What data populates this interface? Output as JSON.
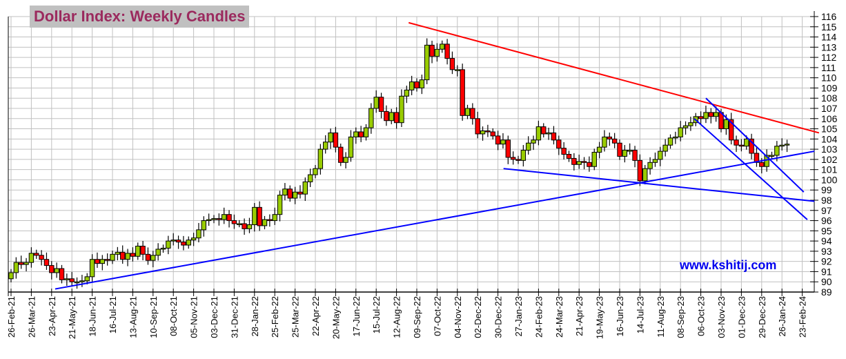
{
  "chart_data": {
    "type": "candlestick",
    "title": "Dollar Index: Weekly Candles",
    "watermark": "www.kshitij.com",
    "ylim": [
      89,
      116
    ],
    "y_ticks": [
      89,
      90,
      91,
      92,
      93,
      94,
      95,
      96,
      97,
      98,
      99,
      100,
      101,
      102,
      103,
      104,
      105,
      106,
      107,
      108,
      109,
      110,
      111,
      112,
      113,
      114,
      115,
      116
    ],
    "grid": true,
    "x_tick_labels": [
      "26-Feb-21",
      "26-Mar-21",
      "23-Apr-21",
      "21-May-21",
      "18-Jun-21",
      "16-Jul-21",
      "13-Aug-21",
      "10-Sep-21",
      "08-Oct-21",
      "05-Nov-21",
      "03-Dec-21",
      "31-Dec-21",
      "28-Jan-22",
      "25-Feb-22",
      "25-Mar-22",
      "22-Apr-22",
      "20-May-22",
      "17-Jun-22",
      "15-Jul-22",
      "12-Aug-22",
      "09-Sep-22",
      "07-Oct-22",
      "04-Nov-22",
      "02-Dec-22",
      "30-Dec-22",
      "27-Jan-23",
      "24-Feb-23",
      "24-Mar-23",
      "21-Apr-23",
      "19-May-23",
      "16-Jun-23",
      "14-Jul-23",
      "11-Aug-23",
      "08-Sep-23",
      "06-Oct-23",
      "03-Nov-23",
      "01-Dec-23",
      "29-Dec-23",
      "26-Jan-24",
      "23-Feb-24"
    ],
    "weeks_per_label": 4,
    "first_open": 90.3,
    "weekly_close": [
      90.9,
      91.9,
      91.7,
      91.9,
      92.8,
      92.6,
      92.2,
      91.6,
      90.9,
      91.3,
      90.2,
      90.3,
      90.0,
      90.0,
      90.1,
      90.5,
      92.2,
      91.8,
      92.2,
      92.1,
      92.7,
      92.9,
      92.2,
      92.8,
      92.5,
      93.5,
      92.7,
      92.1,
      92.6,
      93.2,
      93.3,
      94.0,
      94.1,
      93.9,
      93.6,
      94.1,
      94.3,
      95.1,
      96.0,
      96.1,
      96.2,
      96.1,
      96.6,
      96.0,
      95.7,
      95.7,
      95.2,
      95.6,
      97.3,
      95.5,
      96.1,
      96.0,
      96.6,
      98.5,
      99.1,
      98.2,
      98.8,
      98.6,
      99.8,
      100.5,
      101.1,
      103.0,
      103.7,
      104.6,
      103.2,
      101.7,
      102.2,
      104.2,
      104.7,
      104.2,
      105.1,
      107.0,
      108.1,
      106.7,
      105.8,
      106.6,
      105.6,
      108.2,
      108.8,
      109.6,
      109.0,
      109.8,
      113.2,
      112.1,
      112.8,
      113.3,
      111.9,
      110.8,
      110.8,
      106.3,
      107.0,
      106.0,
      104.5,
      104.8,
      104.7,
      104.3,
      103.5,
      103.9,
      102.2,
      102.0,
      101.9,
      102.9,
      103.6,
      103.9,
      105.2,
      104.5,
      104.6,
      103.9,
      103.1,
      102.5,
      102.1,
      101.5,
      101.8,
      101.7,
      101.3,
      102.7,
      103.2,
      104.2,
      104.0,
      103.6,
      102.3,
      102.9,
      102.9,
      101.9,
      99.9,
      101.1,
      101.7,
      102.0,
      102.8,
      103.4,
      104.1,
      104.2,
      105.1,
      105.3,
      105.6,
      106.2,
      106.0,
      106.6,
      106.2,
      106.6,
      105.0,
      105.9,
      103.9,
      103.4,
      103.3,
      104.0,
      102.6,
      101.7,
      101.3,
      102.4,
      102.4,
      103.3,
      103.4,
      103.5
    ],
    "trendlines": [
      {
        "name": "falling-resistance",
        "color": "#ff0000",
        "from": [
          78.4,
          115.4
        ],
        "to": [
          159.3,
          104.6
        ]
      },
      {
        "name": "rising-support",
        "color": "#0000ff",
        "from": [
          8.7,
          89.3
        ],
        "to": [
          158.4,
          102.8
        ]
      },
      {
        "name": "falling-support",
        "color": "#0000ff",
        "from": [
          97.1,
          101.1
        ],
        "to": [
          158.4,
          97.9
        ]
      },
      {
        "name": "channel-upper",
        "color": "#0000ff",
        "from": [
          137.0,
          108.0
        ],
        "to": [
          156.3,
          98.8
        ]
      },
      {
        "name": "channel-lower",
        "color": "#0000ff",
        "from": [
          134.7,
          106.0
        ],
        "to": [
          157.0,
          96.1
        ]
      }
    ],
    "colors": {
      "up": "#99cc00",
      "down": "#ff0000",
      "grid": "#c0c0c0",
      "title": "#9b2a5e",
      "title_bg": "#c0c0c0",
      "watermark": "#0000ee"
    }
  }
}
